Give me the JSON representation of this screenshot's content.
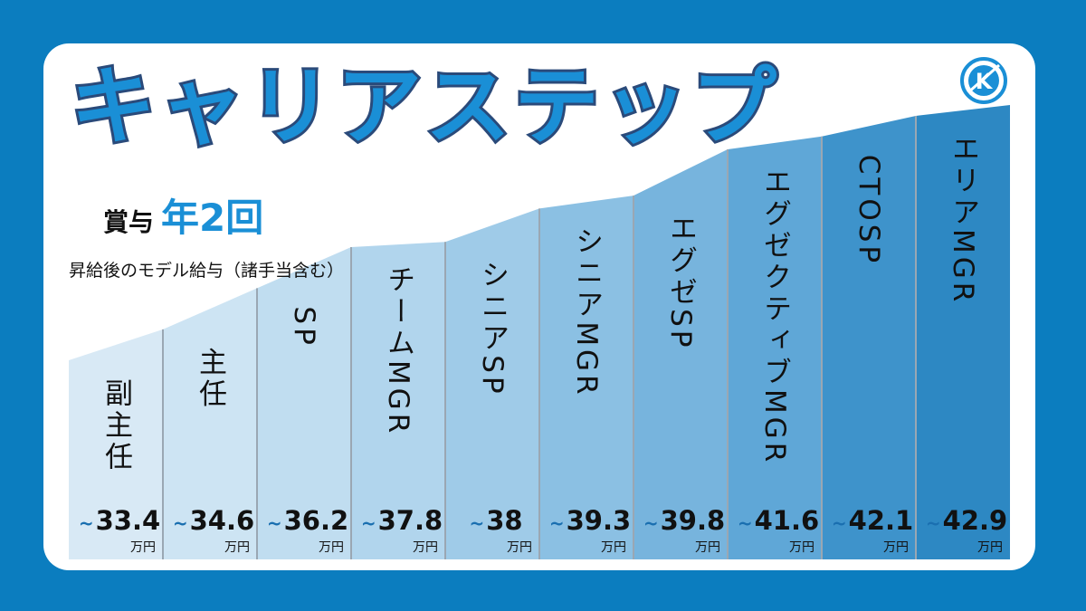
{
  "title": "キャリアステップ",
  "bonus": {
    "label": "賞与",
    "value": "年2回"
  },
  "subtitle": "昇給後のモデル給与（諸手当含む）",
  "logo_letter": "K",
  "colors": {
    "background": "#0b7dbf",
    "title_fill": "#1a8fd6",
    "title_stroke": "#2a4a7a",
    "accent": "#1a8fd6"
  },
  "chart_data": {
    "type": "bar",
    "value_prefix": "~",
    "unit": "万円",
    "categories": [
      "副主任",
      "主任",
      "SP",
      "チームMGR",
      "シニアSP",
      "シニアMGR",
      "エグゼSP",
      "エグゼクティブMGR",
      "CTOSP",
      "エリアMGR"
    ],
    "values": [
      33.4,
      34.6,
      36.2,
      37.8,
      38,
      39.3,
      39.8,
      41.6,
      42.1,
      42.9
    ],
    "value_labels": [
      "33.4",
      "34.6",
      "36.2",
      "37.8",
      "38",
      "39.3",
      "39.8",
      "41.6",
      "42.1",
      "42.9"
    ],
    "bar_colors": [
      "#d8e9f5",
      "#cde4f3",
      "#c0ddf0",
      "#b1d5ed",
      "#9fcbe8",
      "#8bc0e3",
      "#77b4dd",
      "#5fa7d7",
      "#3e93cb",
      "#2d88c3"
    ]
  }
}
